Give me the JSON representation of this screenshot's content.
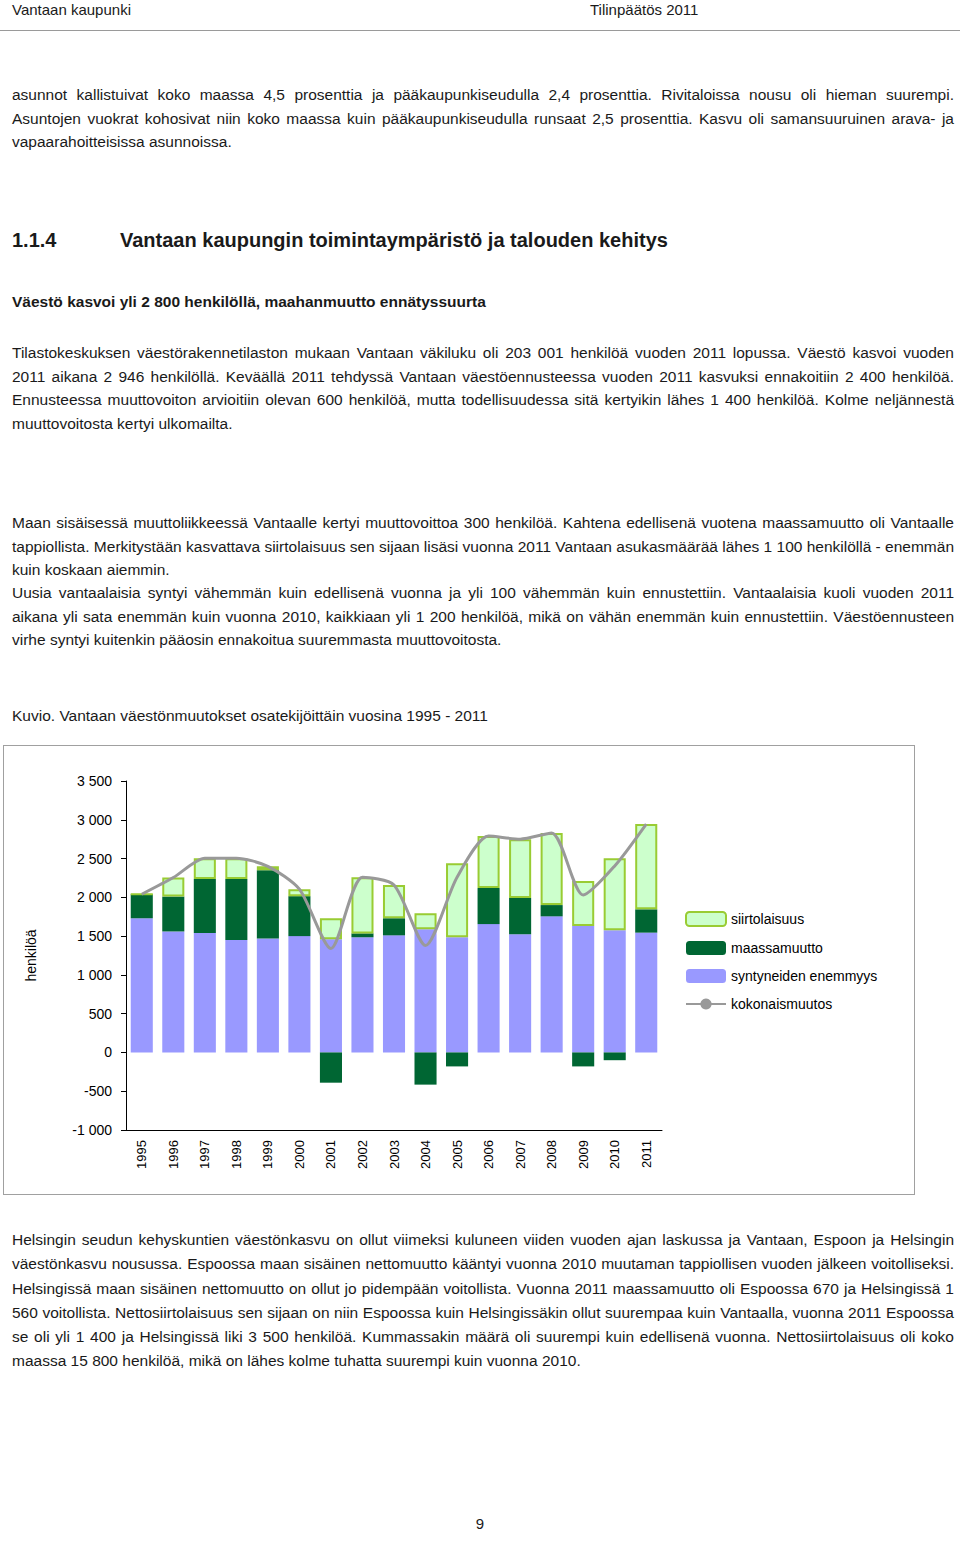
{
  "header": {
    "left": "Vantaan kaupunki",
    "right": "Tilinpäätös 2011"
  },
  "intro_paragraph": "asunnot kallistuivat koko maassa 4,5 prosenttia ja pääkaupunkiseudulla 2,4 prosenttia. Rivitaloissa nousu oli hieman suurempi. Asuntojen vuokrat kohosivat niin koko maassa kuin pääkaupunkiseudulla runsaat 2,5 prosenttia. Kasvu oli samansuuruinen arava- ja vapaarahoitteisissa asunnoissa.",
  "section": {
    "number": "1.1.4",
    "title": "Vantaan kaupungin toimintaympäristö ja talouden kehitys"
  },
  "subheading": "Väestö kasvoi yli 2 800 henkilöllä, maahanmuutto ennätyssuurta",
  "paragraphs_before_chart": [
    "Tilastokeskuksen väestörakennetilaston mukaan Vantaan väkiluku oli 203 001 henkilöä vuoden 2011 lopussa. Väestö kasvoi vuoden 2011 aikana 2 946 henkilöllä. Keväällä 2011 tehdyssä Vantaan väestöennusteessa vuoden 2011 kasvuksi ennakoitiin 2 400 henkilöä. Ennusteessa muuttovoiton arvioitiin olevan 600 henkilöä, mutta todellisuudessa sitä kertyikin lähes 1 400 henkilöä. Kolme neljännestä muuttovoitosta kertyi ulkomailta.",
    "Maan sisäisessä muuttoliikkeessä Vantaalle kertyi muuttovoittoa 300 henkilöä. Kahtena edellisenä vuotena maassamuutto oli Vantaalle tappiollista. Merkitystään kasvattava siirtolaisuus sen sijaan lisäsi vuonna 2011 Vantaan asukasmäärää lähes 1 100 henkilöllä - enemmän kuin koskaan aiemmin.",
    "Uusia vantaalaisia syntyi vähemmän kuin edellisenä vuonna ja yli 100 vähemmän kuin ennustettiin. Vantaalaisia kuoli vuoden 2011 aikana yli sata enemmän kuin vuonna 2010, kaikkiaan yli 1 200 henkilöä, mikä on vähän enemmän kuin ennustettiin. Väestöennusteen virhe syntyi kuitenkin pääosin ennakoitua suuremmasta muuttovoitosta."
  ],
  "chart_data": {
    "type": "bar",
    "title": "Kuvio. Vantaan väestönmuutokset osatekijöittäin vuosina 1995 - 2011",
    "y_label": "henkilöä",
    "categories": [
      "1995",
      "1996",
      "1997",
      "1998",
      "1999",
      "2000",
      "2001",
      "2002",
      "2003",
      "2004",
      "2005",
      "2006",
      "2007",
      "2008",
      "2009",
      "2010",
      "2011"
    ],
    "series": [
      {
        "name": "siirtolaisuus",
        "type": "bar",
        "color": "#ccffcc",
        "values": [
          0,
          245,
          270,
          270,
          50,
          90,
          270,
          725,
          430,
          205,
          955,
          670,
          760,
          930,
          580,
          930,
          1100
        ]
      },
      {
        "name": "maassamuutto",
        "type": "bar",
        "color": "#006633",
        "values": [
          310,
          450,
          695,
          785,
          880,
          515,
          -390,
          50,
          220,
          -415,
          -180,
          465,
          465,
          145,
          -180,
          -100,
          300
        ]
      },
      {
        "name": "syntyneiden enemmyys",
        "type": "bar",
        "color": "#9999ff",
        "values": [
          1730,
          1560,
          1540,
          1450,
          1470,
          1500,
          1460,
          1485,
          1510,
          1590,
          1485,
          1655,
          1525,
          1755,
          1630,
          1575,
          1545
        ]
      },
      {
        "name": "kokonaismuutos",
        "type": "line",
        "color": "#999999",
        "values": [
          2040,
          2255,
          2505,
          2505,
          2400,
          2105,
          1340,
          2260,
          2160,
          1380,
          2260,
          2790,
          2750,
          2830,
          2030,
          2405,
          2945
        ]
      }
    ],
    "stacked": true,
    "ylim": [
      -1000,
      3500
    ],
    "yticks": [
      {
        "value": -1000,
        "label": "-1 000"
      },
      -500,
      0,
      500,
      {
        "value": 1000,
        "label": "1 000"
      },
      {
        "value": 1500,
        "label": "1 500"
      },
      {
        "value": 2000,
        "label": "2 000"
      },
      {
        "value": 2500,
        "label": "2 500"
      },
      {
        "value": 3000,
        "label": "3 000"
      },
      {
        "value": 3500,
        "label": "3 500"
      }
    ],
    "grid": false,
    "legend": "right"
  },
  "paragraphs_after_chart": [
    "Helsingin seudun kehyskuntien väestönkasvu on ollut viimeksi kuluneen viiden vuoden ajan laskussa ja Vantaan, Espoon ja Helsingin väestönkasvu nousussa. Espoossa maan sisäinen nettomuutto kääntyi vuonna 2010 muutaman tappiollisen vuoden jälkeen voitolliseksi. Helsingissä maan sisäinen nettomuutto on ollut jo pidempään voitollista. Vuonna 2011 maassamuutto oli Espoossa 670 ja Helsingissä 1 560 voitollista. Nettosiirtolaisuus sen sijaan on niin Espoossa kuin Helsingissäkin ollut suurempaa kuin Vantaalla, vuonna 2011 Espoossa se oli yli 1 400 ja Helsingissä liki 3 500 henkilöä. Kummassakin määrä oli suurempi kuin edellisenä vuonna. Nettosiirtolaisuus oli koko maassa 15 800 henkilöä, mikä on lähes kolme tuhatta suurempi kuin vuonna 2010."
  ],
  "page_number": 9
}
